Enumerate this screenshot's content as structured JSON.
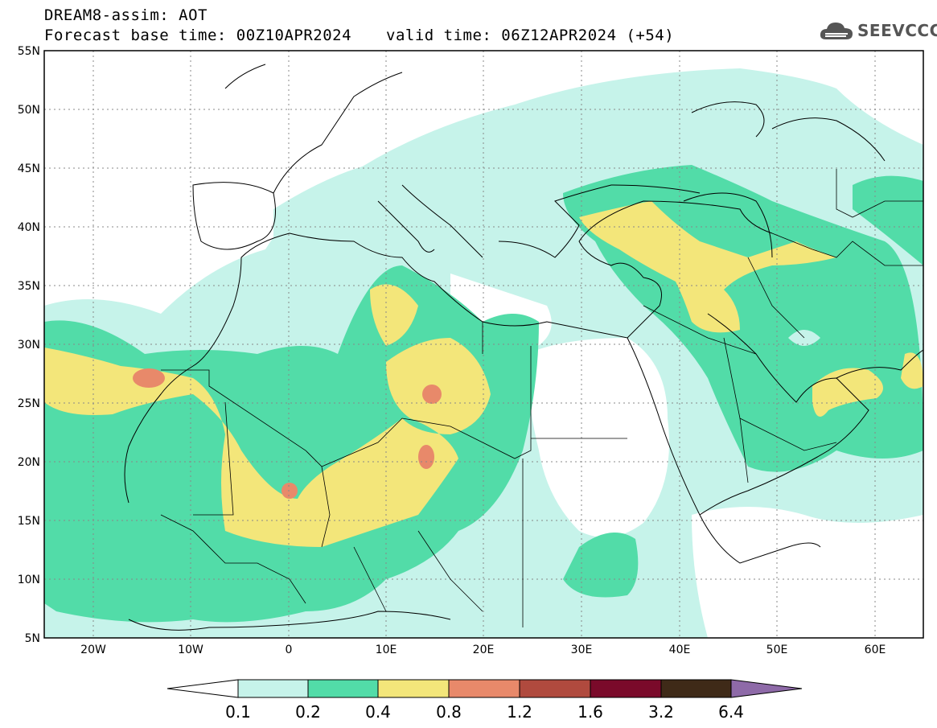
{
  "title_line1": "DREAM8-assim: AOT",
  "title_line2_base": "Forecast base time: 00Z10APR2024",
  "title_line2_valid": "valid time: 06Z12APR2024 (+54)",
  "logo_text": "SEEVCCC",
  "axes": {
    "lon_range": [
      -25,
      65
    ],
    "lat_range": [
      5,
      55
    ],
    "lat_ticks": [
      "55N",
      "50N",
      "45N",
      "40N",
      "35N",
      "30N",
      "25N",
      "20N",
      "15N",
      "10N",
      "5N"
    ],
    "lon_ticks": [
      "20W",
      "10W",
      "0",
      "10E",
      "20E",
      "30E",
      "40E",
      "50E",
      "60E"
    ]
  },
  "colorbar": {
    "levels": [
      "0.1",
      "0.2",
      "0.4",
      "0.8",
      "1.2",
      "1.6",
      "3.2",
      "6.4"
    ],
    "colors": [
      "#c6f3ea",
      "#52dca8",
      "#f3e67a",
      "#e8896a",
      "#b04a3e",
      "#7a0a2a",
      "#3f2a18",
      "#8e6aa8"
    ]
  }
}
